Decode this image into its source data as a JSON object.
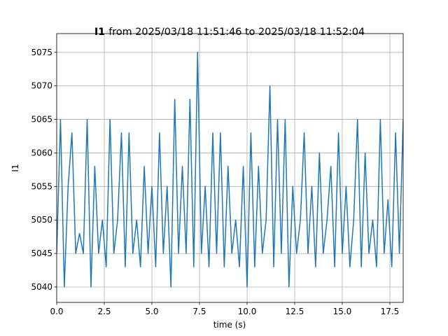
{
  "chart_data": {
    "type": "line",
    "title_parts": [
      "I1",
      "from 2025/03/18 11:51:46 to 2025/03/18 11:52:04"
    ],
    "xlabel": "time (s)",
    "ylabel": "I1",
    "x": [
      0.0,
      0.2,
      0.4,
      0.6,
      0.8,
      1.0,
      1.2,
      1.4,
      1.6,
      1.8,
      2.0,
      2.2,
      2.4,
      2.6,
      2.8,
      3.0,
      3.2,
      3.4,
      3.6,
      3.8,
      4.0,
      4.2,
      4.4,
      4.6,
      4.8,
      5.0,
      5.2,
      5.4,
      5.6,
      5.8,
      6.0,
      6.2,
      6.4,
      6.6,
      6.8,
      7.0,
      7.2,
      7.4,
      7.6,
      7.8,
      8.0,
      8.2,
      8.4,
      8.6,
      8.8,
      9.0,
      9.2,
      9.4,
      9.6,
      9.8,
      10.0,
      10.2,
      10.4,
      10.6,
      10.8,
      11.0,
      11.2,
      11.4,
      11.6,
      11.8,
      12.0,
      12.2,
      12.4,
      12.6,
      12.8,
      13.0,
      13.2,
      13.4,
      13.6,
      13.8,
      14.0,
      14.2,
      14.4,
      14.6,
      14.8,
      15.0,
      15.2,
      15.4,
      15.6,
      15.8,
      16.0,
      16.2,
      16.4,
      16.6,
      16.8,
      17.0,
      17.2,
      17.4,
      17.6,
      17.8,
      18.0,
      18.2
    ],
    "values": [
      5045,
      5065,
      5040,
      5055,
      5063,
      5045,
      5048,
      5045,
      5065,
      5040,
      5058,
      5045,
      5050,
      5043,
      5065,
      5045,
      5050,
      5063,
      5043,
      5063,
      5045,
      5050,
      5043,
      5058,
      5045,
      5055,
      5043,
      5063,
      5045,
      5055,
      5040,
      5068,
      5045,
      5058,
      5045,
      5068,
      5043,
      5075,
      5045,
      5055,
      5043,
      5063,
      5045,
      5063,
      5043,
      5058,
      5045,
      5050,
      5043,
      5058,
      5040,
      5063,
      5043,
      5058,
      5045,
      5050,
      5070,
      5043,
      5065,
      5045,
      5065,
      5040,
      5055,
      5045,
      5050,
      5063,
      5045,
      5055,
      5043,
      5060,
      5045,
      5050,
      5058,
      5043,
      5063,
      5045,
      5055,
      5043,
      5050,
      5065,
      5043,
      5060,
      5045,
      5050,
      5043,
      5065,
      5045,
      5053,
      5043,
      5063,
      5045,
      5065
    ],
    "color": "#1f77b4",
    "xlim": [
      0,
      18.2
    ],
    "xticks": [
      {
        "value": 0,
        "label": "0.0"
      },
      {
        "value": 2.5,
        "label": "2.5"
      },
      {
        "value": 5,
        "label": "5.0"
      },
      {
        "value": 7.5,
        "label": "7.5"
      },
      {
        "value": 10,
        "label": "10.0"
      },
      {
        "value": 12.5,
        "label": "12.5"
      },
      {
        "value": 15,
        "label": "15.0"
      },
      {
        "value": 17.5,
        "label": "17.5"
      }
    ],
    "ylim": [
      5037.7,
      5077.8
    ],
    "yticks": [
      5040,
      5045,
      5050,
      5055,
      5060,
      5065,
      5070,
      5075
    ],
    "grid": true
  }
}
